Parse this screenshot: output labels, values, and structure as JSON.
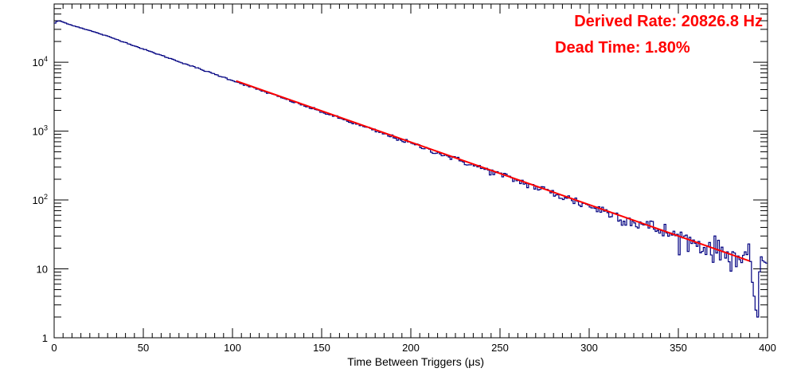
{
  "chart_data": {
    "type": "line",
    "title": "",
    "xlabel": "Time Between Triggers (μs)",
    "ylabel": "",
    "xlim": [
      0,
      400
    ],
    "ylim": [
      1,
      70000
    ],
    "yscale": "log",
    "grid": false,
    "legend": "none",
    "x_ticks": [
      0,
      50,
      100,
      150,
      200,
      250,
      300,
      350,
      400
    ],
    "x_tick_labels": [
      "0",
      "50",
      "100",
      "150",
      "200",
      "250",
      "300",
      "350",
      "400"
    ],
    "y_tick_labels": [
      {
        "value": 1,
        "base": "1",
        "exp": ""
      },
      {
        "value": 10,
        "base": "10",
        "exp": ""
      },
      {
        "value": 100,
        "base": "10",
        "exp": "2"
      },
      {
        "value": 1000,
        "base": "10",
        "exp": "3"
      },
      {
        "value": 10000,
        "base": "10",
        "exp": "4"
      }
    ],
    "annotations": [
      "Derived Rate: 20826.8 Hz",
      "Dead Time: 1.80%"
    ],
    "series": [
      {
        "kind": "histogram",
        "color": "#000080",
        "x": [
          0,
          2,
          4,
          6,
          8,
          10,
          20,
          30,
          40,
          50,
          60,
          70,
          80,
          90,
          100,
          110,
          120,
          130,
          140,
          150,
          160,
          170,
          180,
          190,
          200,
          210,
          220,
          230,
          240,
          250,
          260,
          270,
          280,
          290,
          300,
          310,
          320,
          330,
          340,
          350,
          360,
          370,
          380,
          390,
          394,
          396,
          398,
          400
        ],
        "values": [
          36000,
          40000,
          39000,
          37500,
          35500,
          34500,
          28800,
          23800,
          19300,
          15500,
          12600,
          10200,
          8250,
          6700,
          5450,
          4400,
          3580,
          2900,
          2350,
          1900,
          1540,
          1250,
          1010,
          820,
          665,
          540,
          438,
          355,
          288,
          234,
          190,
          154,
          125,
          101,
          82,
          67,
          54,
          44,
          36,
          29,
          23.5,
          19,
          15.5,
          12.8,
          2,
          15,
          12.5,
          12
        ]
      },
      {
        "kind": "fit",
        "color": "#ff0000",
        "x": [
          102,
          390
        ],
        "values": [
          5350,
          13
        ]
      }
    ]
  }
}
